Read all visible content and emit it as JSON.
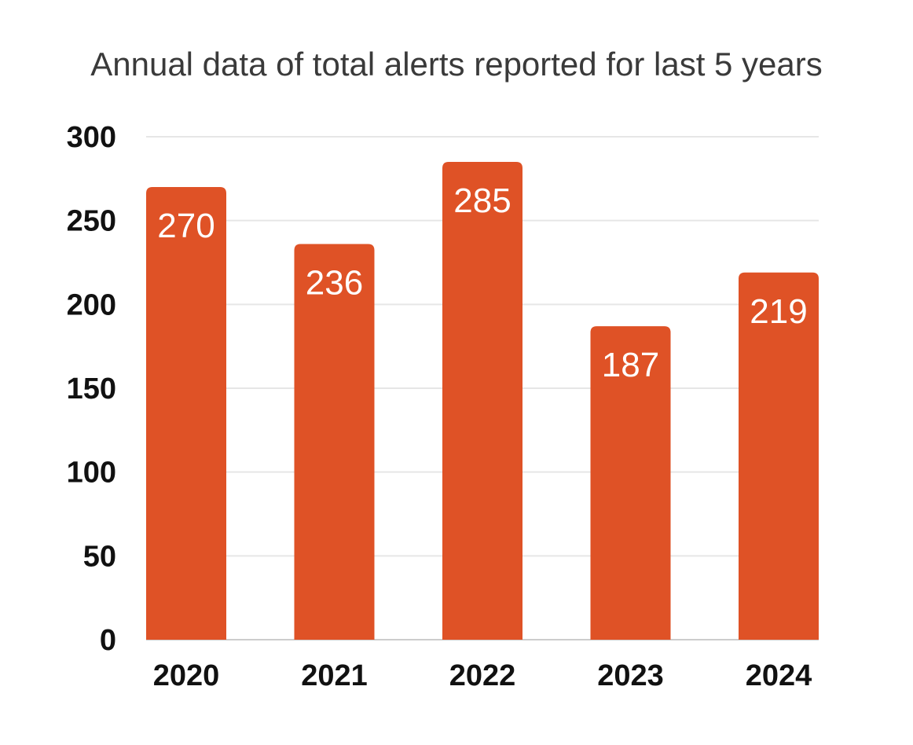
{
  "chart_data": {
    "type": "bar",
    "title": "Annual data of total alerts reported for last 5 years",
    "xlabel": "",
    "ylabel": "",
    "categories": [
      "2020",
      "2021",
      "2022",
      "2023",
      "2024"
    ],
    "values": [
      270,
      236,
      285,
      187,
      219
    ],
    "data_labels": [
      "270",
      "236",
      "285",
      "187",
      "219"
    ],
    "ylim": [
      0,
      300
    ],
    "yticks": [
      0,
      50,
      100,
      150,
      200,
      250,
      300
    ],
    "ytick_labels": [
      "0",
      "50",
      "100",
      "150",
      "200",
      "250",
      "300"
    ],
    "grid": true,
    "legend": "none",
    "bar_color": "#DF5226",
    "label_color": "#FFFFFF"
  }
}
